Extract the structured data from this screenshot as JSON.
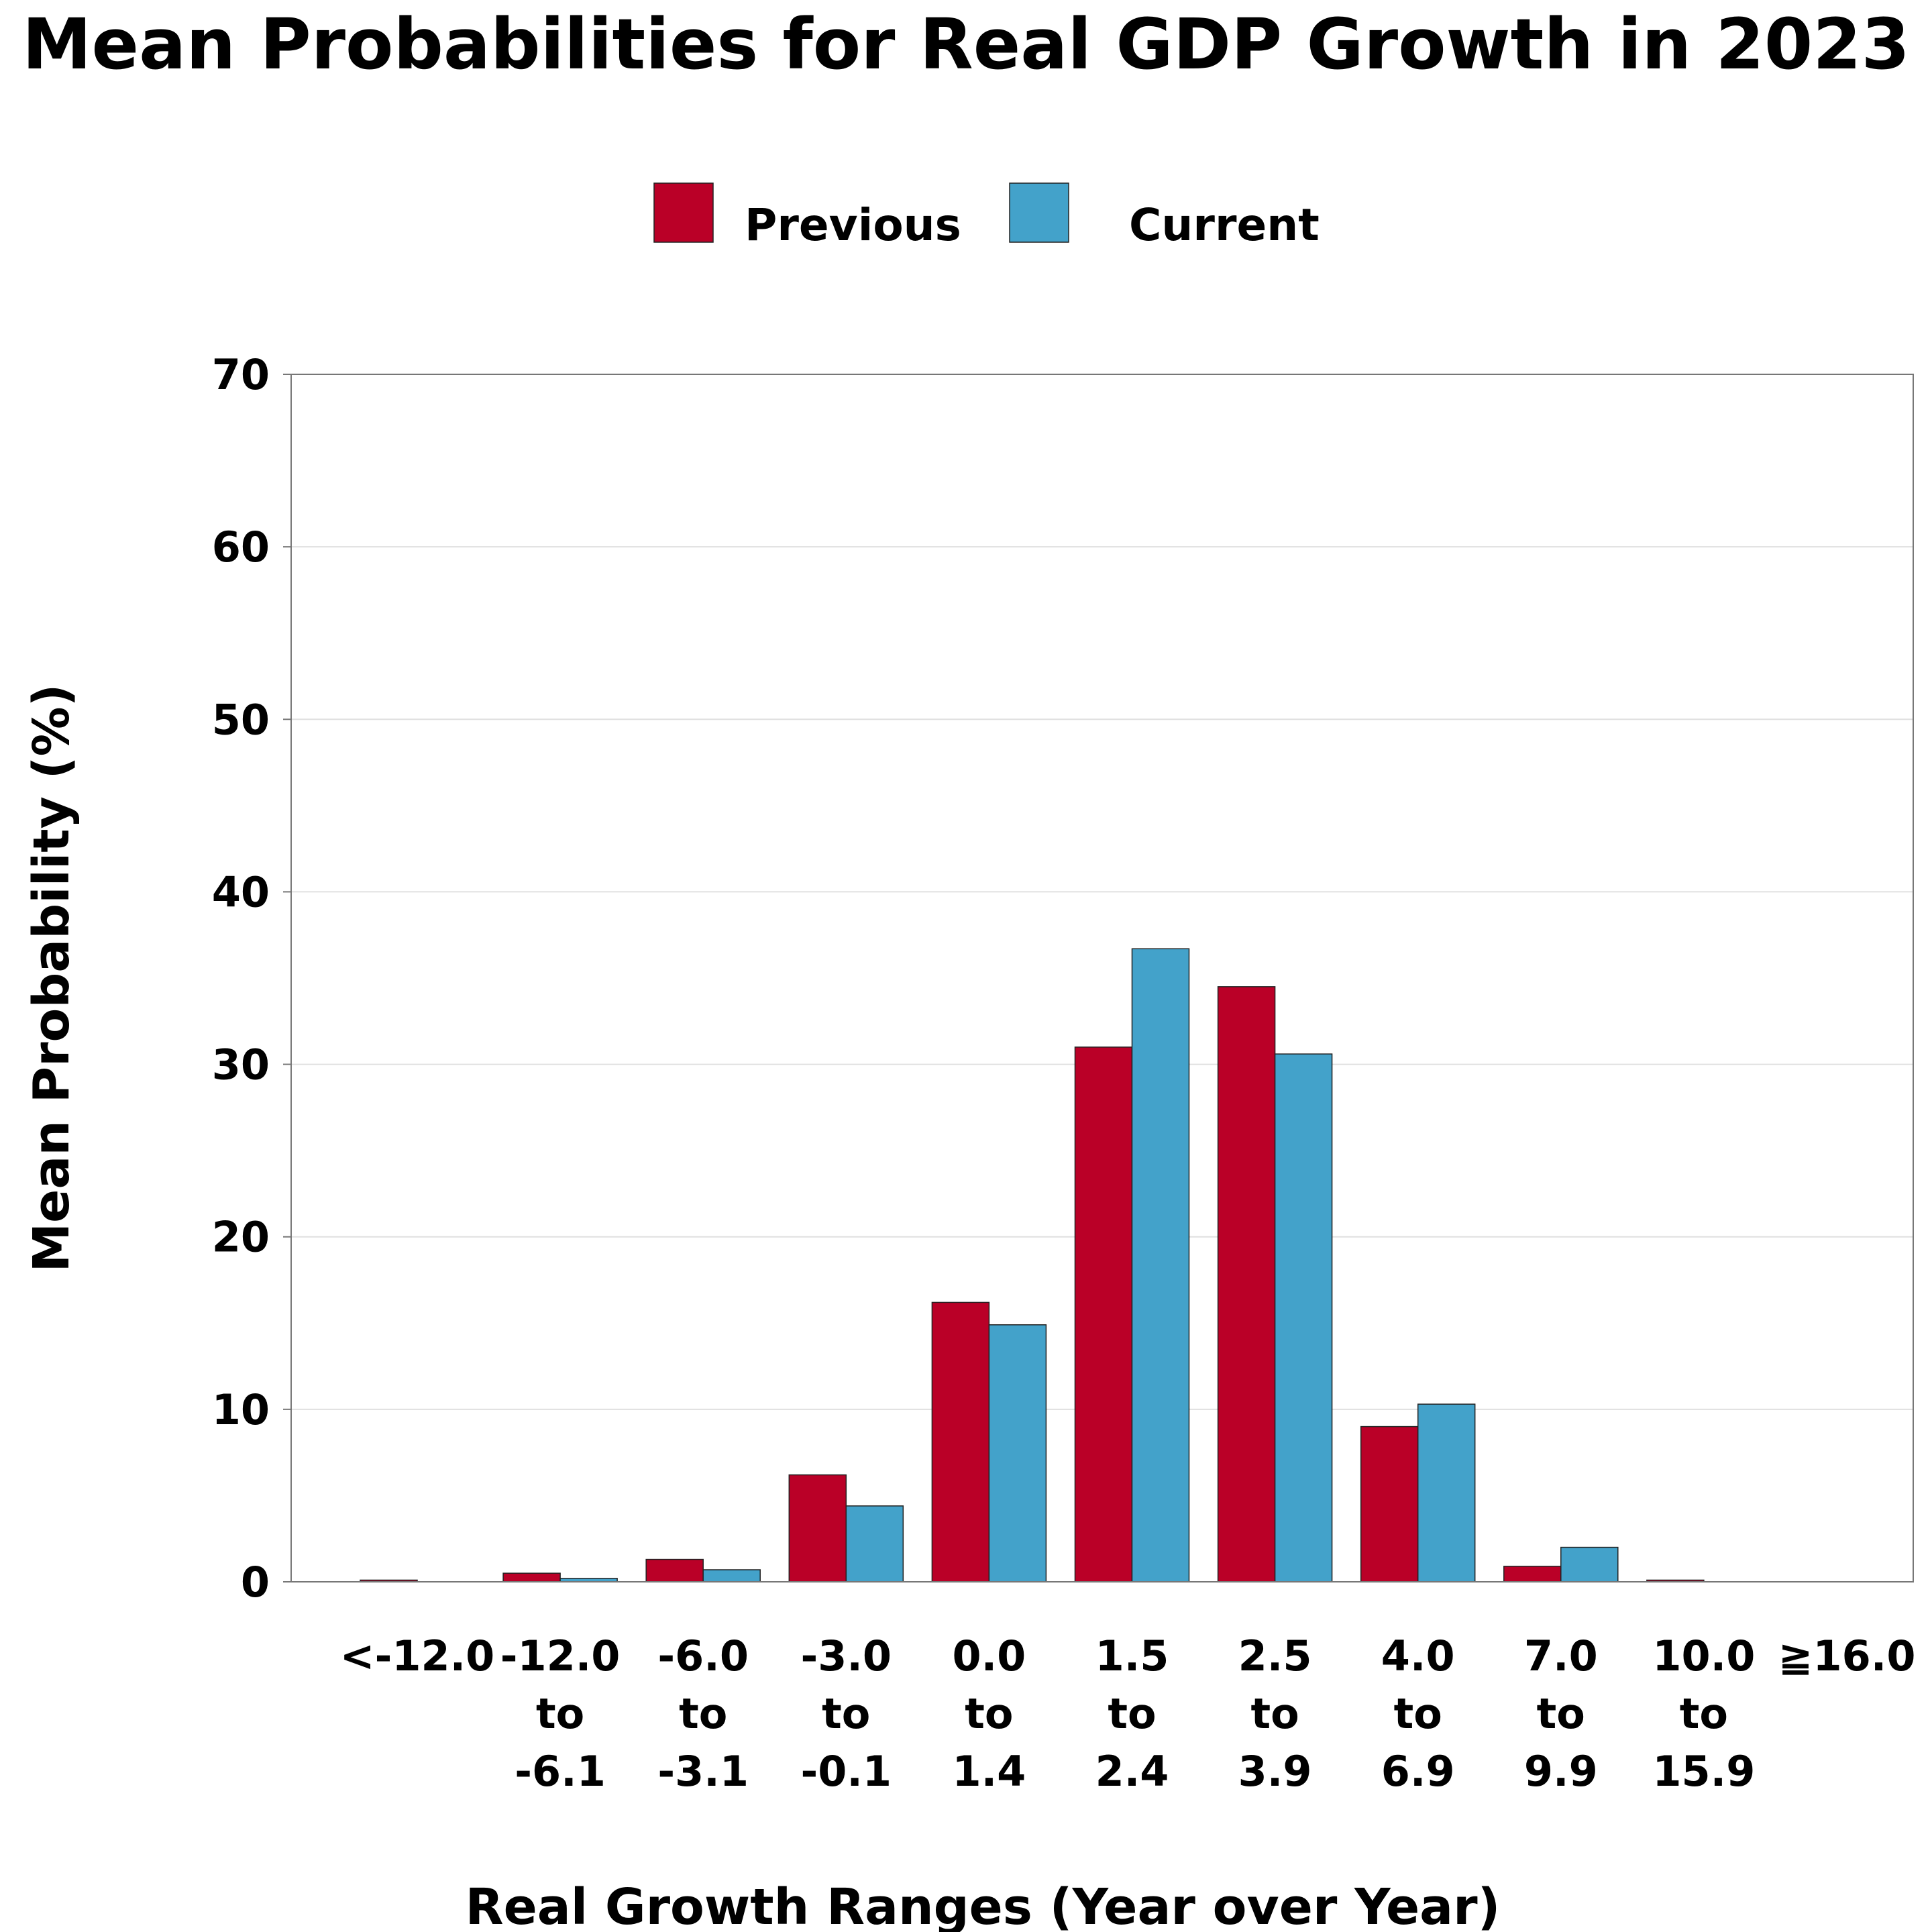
{
  "chart_data": {
    "type": "bar",
    "title": "Mean Probabilities for Real GDP Growth in 2023",
    "xlabel": "Real Growth Ranges (Year over Year)",
    "ylabel": "Mean Probability (%)",
    "ylim": [
      0,
      70
    ],
    "yticks": [
      0,
      10,
      20,
      30,
      40,
      50,
      60,
      70
    ],
    "grid": "horizontal",
    "legend_position": "top-center",
    "categories": [
      [
        "<-12.0"
      ],
      [
        "-12.0",
        "to",
        "-6.1"
      ],
      [
        "-6.0",
        "to",
        "-3.1"
      ],
      [
        "-3.0",
        "to",
        "-0.1"
      ],
      [
        "0.0",
        "to",
        "1.4"
      ],
      [
        "1.5",
        "to",
        "2.4"
      ],
      [
        "2.5",
        "to",
        "3.9"
      ],
      [
        "4.0",
        "to",
        "6.9"
      ],
      [
        "7.0",
        "to",
        "9.9"
      ],
      [
        "10.0",
        "to",
        "15.9"
      ],
      [
        "≧16.0"
      ]
    ],
    "series": [
      {
        "name": "Previous",
        "color": "#BA0027",
        "values": [
          0.1,
          0.5,
          1.3,
          6.2,
          16.2,
          31.0,
          34.5,
          9.0,
          0.9,
          0.1,
          0.0
        ]
      },
      {
        "name": "Current",
        "color": "#43A2CA",
        "values": [
          0.0,
          0.2,
          0.7,
          4.4,
          14.9,
          36.7,
          30.6,
          10.3,
          2.0,
          0.0,
          0.0
        ]
      }
    ]
  }
}
